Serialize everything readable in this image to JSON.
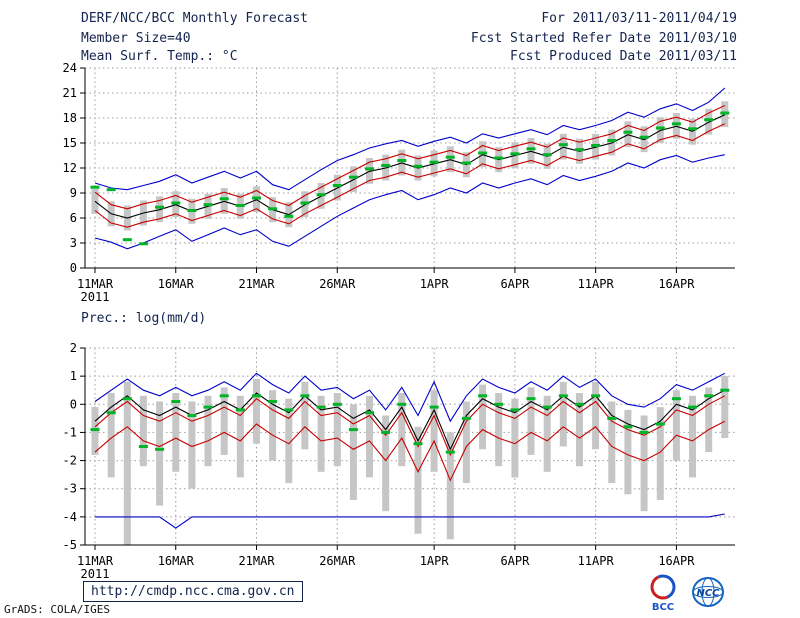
{
  "header": {
    "title": "DERF/NCC/BCC Monthly Forecast",
    "member_size": "Member Size=40",
    "for_range": "For 2011/03/11-2011/04/19",
    "refer_date": "Fcst Started Refer Date 2011/03/10",
    "produced_date": "Fcst Produced Date 2011/03/11"
  },
  "footer": {
    "url": "http://cmdp.ncc.cma.gov.cn",
    "grads_credit": "GrADS: COLA/IGES",
    "bcc_label": "BCC",
    "ncc_label": "NCC"
  },
  "colors": {
    "envelope": "#0000cc",
    "std_band": "#c80000",
    "ensemble_mean": "#000000",
    "observation": "#00b428",
    "spread_bar": "#c6c6c6"
  },
  "chart_data": [
    {
      "type": "line",
      "title": "Mean Surf. Temp.: °C",
      "ylabel": "",
      "ylim": [
        0,
        24
      ],
      "ytick_step": 3,
      "grid": true,
      "n_points": 40,
      "x_tick_labels": [
        "11MAR",
        "16MAR",
        "21MAR",
        "26MAR",
        "1APR",
        "6APR",
        "11APR",
        "16APR"
      ],
      "x_tick_days": [
        0,
        5,
        10,
        15,
        21,
        26,
        31,
        36
      ],
      "x_year": "2011",
      "series": [
        {
          "name": "max",
          "color": "#0000cc",
          "values": [
            10.2,
            9.6,
            9.4,
            9.9,
            10.4,
            11.2,
            10.2,
            10.9,
            11.6,
            10.8,
            11.6,
            10.0,
            9.4,
            10.6,
            11.8,
            12.9,
            13.6,
            14.4,
            14.9,
            15.3,
            14.6,
            15.2,
            15.7,
            15.0,
            16.1,
            15.6,
            16.1,
            16.6,
            16.0,
            17.1,
            16.6,
            17.1,
            17.7,
            18.7,
            18.1,
            19.1,
            19.7,
            18.9,
            19.9,
            21.6
          ]
        },
        {
          "name": "plus-std",
          "color": "#c80000",
          "values": [
            9.1,
            7.6,
            7.1,
            7.7,
            8.1,
            8.7,
            7.9,
            8.5,
            9.1,
            8.5,
            9.3,
            8.1,
            7.5,
            8.7,
            9.7,
            10.7,
            11.7,
            12.7,
            13.1,
            13.7,
            13.1,
            13.6,
            14.1,
            13.5,
            14.7,
            14.1,
            14.6,
            15.1,
            14.5,
            15.6,
            15.1,
            15.6,
            16.1,
            17.1,
            16.5,
            17.6,
            18.1,
            17.5,
            18.6,
            19.5
          ]
        },
        {
          "name": "mean",
          "color": "#000000",
          "values": [
            8.0,
            6.5,
            6.0,
            6.6,
            7.0,
            7.6,
            6.8,
            7.4,
            8.0,
            7.4,
            8.2,
            7.0,
            6.4,
            7.6,
            8.6,
            9.6,
            10.6,
            11.6,
            12.0,
            12.6,
            12.0,
            12.5,
            13.0,
            12.4,
            13.6,
            13.0,
            13.5,
            14.0,
            13.4,
            14.5,
            14.0,
            14.5,
            15.0,
            16.0,
            15.4,
            16.5,
            17.0,
            16.4,
            17.5,
            18.4
          ]
        },
        {
          "name": "minus-std",
          "color": "#c80000",
          "values": [
            6.9,
            5.4,
            4.9,
            5.5,
            5.9,
            6.5,
            5.7,
            6.3,
            6.9,
            6.3,
            7.1,
            5.9,
            5.3,
            6.5,
            7.5,
            8.5,
            9.5,
            10.5,
            10.9,
            11.5,
            10.9,
            11.4,
            11.9,
            11.3,
            12.5,
            11.9,
            12.4,
            12.9,
            12.3,
            13.4,
            12.9,
            13.4,
            13.9,
            14.9,
            14.3,
            15.4,
            15.9,
            15.3,
            16.4,
            17.3
          ]
        },
        {
          "name": "min",
          "color": "#0000cc",
          "values": [
            3.6,
            3.1,
            2.3,
            3.0,
            3.8,
            4.6,
            3.2,
            4.0,
            4.8,
            4.0,
            4.6,
            3.2,
            2.6,
            3.8,
            5.0,
            6.2,
            7.2,
            8.2,
            8.8,
            9.3,
            8.2,
            8.8,
            9.6,
            9.0,
            10.2,
            9.6,
            10.2,
            10.7,
            10.0,
            11.1,
            10.5,
            11.0,
            11.6,
            12.6,
            12.0,
            13.0,
            13.5,
            12.7,
            13.2,
            13.6
          ]
        }
      ],
      "ensemble_bars": {
        "color": "#c6c6c6",
        "high": [
          9.5,
          8.0,
          7.5,
          8.1,
          8.6,
          9.2,
          8.3,
          8.9,
          9.6,
          8.9,
          9.8,
          8.5,
          7.9,
          9.2,
          10.2,
          11.2,
          12.2,
          13.2,
          13.6,
          14.2,
          13.5,
          14.1,
          14.6,
          13.9,
          15.2,
          14.5,
          15.1,
          15.6,
          14.9,
          16.1,
          15.5,
          16.1,
          16.6,
          17.6,
          17.0,
          18.1,
          18.6,
          17.9,
          19.1,
          20.0
        ],
        "low": [
          6.5,
          5.0,
          4.5,
          5.1,
          5.5,
          6.1,
          5.3,
          5.9,
          6.5,
          5.9,
          6.7,
          5.5,
          4.9,
          6.1,
          7.1,
          8.1,
          9.1,
          10.1,
          10.5,
          11.1,
          10.5,
          11.0,
          11.5,
          10.9,
          12.1,
          11.5,
          12.0,
          12.5,
          11.9,
          13.0,
          12.5,
          13.0,
          13.5,
          14.5,
          13.9,
          15.0,
          15.5,
          14.8,
          16.0,
          16.9
        ]
      },
      "obs_marks": {
        "color": "#00b428",
        "values": [
          9.7,
          9.4,
          3.4,
          2.9,
          7.3,
          7.8,
          6.9,
          7.6,
          8.3,
          7.5,
          8.4,
          7.1,
          6.2,
          7.8,
          8.8,
          9.9,
          10.9,
          11.9,
          12.3,
          12.9,
          12.2,
          12.7,
          13.3,
          12.6,
          13.8,
          13.2,
          13.7,
          14.3,
          13.6,
          14.8,
          14.2,
          14.7,
          15.3,
          16.3,
          15.7,
          16.8,
          17.3,
          16.7,
          17.8,
          18.6
        ]
      }
    },
    {
      "type": "line",
      "title": "Prec.: log(mm/d)",
      "ylabel": "",
      "ylim": [
        -5,
        2
      ],
      "ytick_step": 1,
      "grid": true,
      "n_points": 40,
      "x_tick_labels": [
        "11MAR",
        "16MAR",
        "21MAR",
        "26MAR",
        "1APR",
        "6APR",
        "11APR",
        "16APR"
      ],
      "x_tick_days": [
        0,
        5,
        10,
        15,
        21,
        26,
        31,
        36
      ],
      "x_year": "2011",
      "series": [
        {
          "name": "max",
          "color": "#0000cc",
          "values": [
            0.1,
            0.5,
            0.9,
            0.5,
            0.3,
            0.6,
            0.3,
            0.5,
            0.8,
            0.5,
            1.1,
            0.7,
            0.4,
            1.0,
            0.5,
            0.6,
            0.2,
            0.5,
            -0.2,
            0.6,
            -0.4,
            0.8,
            -0.6,
            0.3,
            0.9,
            0.6,
            0.4,
            0.8,
            0.5,
            1.0,
            0.6,
            0.9,
            0.3,
            0.0,
            -0.1,
            0.2,
            0.7,
            0.5,
            0.8,
            1.1
          ]
        },
        {
          "name": "plus-std",
          "color": "#c80000",
          "values": [
            -0.8,
            -0.3,
            0.1,
            -0.4,
            -0.6,
            -0.3,
            -0.6,
            -0.4,
            -0.1,
            -0.4,
            0.2,
            -0.2,
            -0.5,
            0.1,
            -0.4,
            -0.3,
            -0.7,
            -0.4,
            -1.1,
            -0.3,
            -1.5,
            -0.4,
            -1.8,
            -0.6,
            0.0,
            -0.3,
            -0.5,
            -0.1,
            -0.4,
            0.1,
            -0.3,
            0.1,
            -0.6,
            -0.9,
            -1.1,
            -0.8,
            -0.2,
            -0.4,
            0.0,
            0.3
          ]
        },
        {
          "name": "mean",
          "color": "#000000",
          "values": [
            -0.6,
            -0.1,
            0.3,
            -0.2,
            -0.4,
            -0.1,
            -0.4,
            -0.2,
            0.1,
            -0.2,
            0.4,
            0.0,
            -0.3,
            0.3,
            -0.2,
            -0.1,
            -0.5,
            -0.2,
            -0.9,
            -0.1,
            -1.3,
            -0.2,
            -1.6,
            -0.4,
            0.2,
            -0.1,
            -0.3,
            0.1,
            -0.2,
            0.3,
            -0.1,
            0.3,
            -0.4,
            -0.7,
            -0.9,
            -0.6,
            0.0,
            -0.2,
            0.2,
            0.5
          ]
        },
        {
          "name": "minus-std",
          "color": "#c80000",
          "values": [
            -1.7,
            -1.2,
            -0.8,
            -1.3,
            -1.5,
            -1.2,
            -1.5,
            -1.3,
            -1.0,
            -1.3,
            -0.7,
            -1.1,
            -1.4,
            -0.8,
            -1.3,
            -1.2,
            -1.6,
            -1.3,
            -2.0,
            -1.2,
            -2.4,
            -1.3,
            -2.7,
            -1.5,
            -0.9,
            -1.2,
            -1.4,
            -1.0,
            -1.3,
            -0.8,
            -1.2,
            -0.8,
            -1.5,
            -1.8,
            -2.0,
            -1.7,
            -1.1,
            -1.3,
            -0.9,
            -0.6
          ]
        },
        {
          "name": "min",
          "color": "#0000cc",
          "values": [
            -4.0,
            -4.0,
            -4.0,
            -4.0,
            -4.0,
            -4.4,
            -4.0,
            -4.0,
            -4.0,
            -4.0,
            -4.0,
            -4.0,
            -4.0,
            -4.0,
            -4.0,
            -4.0,
            -4.0,
            -4.0,
            -4.0,
            -4.0,
            -4.0,
            -4.0,
            -4.0,
            -4.0,
            -4.0,
            -4.0,
            -4.0,
            -4.0,
            -4.0,
            -4.0,
            -4.0,
            -4.0,
            -4.0,
            -4.0,
            -4.0,
            -4.0,
            -4.0,
            -4.0,
            -4.0,
            -3.9
          ]
        }
      ],
      "ensemble_bars": {
        "color": "#c6c6c6",
        "high": [
          -0.1,
          0.4,
          0.8,
          0.3,
          0.1,
          0.4,
          0.1,
          0.3,
          0.6,
          0.3,
          0.9,
          0.5,
          0.2,
          0.8,
          0.3,
          0.4,
          0.0,
          0.3,
          -0.4,
          0.4,
          -0.8,
          0.5,
          -1.0,
          0.1,
          0.7,
          0.4,
          0.2,
          0.6,
          0.3,
          0.8,
          0.4,
          0.8,
          0.1,
          -0.2,
          -0.4,
          -0.1,
          0.5,
          0.3,
          0.6,
          1.0
        ],
        "low": [
          -1.8,
          -2.6,
          -5.0,
          -2.2,
          -3.6,
          -2.4,
          -3.0,
          -2.2,
          -1.8,
          -2.6,
          -1.4,
          -2.0,
          -2.8,
          -1.6,
          -2.4,
          -2.2,
          -3.4,
          -2.6,
          -3.8,
          -2.2,
          -4.6,
          -2.4,
          -4.8,
          -2.8,
          -1.6,
          -2.2,
          -2.6,
          -1.8,
          -2.4,
          -1.5,
          -2.2,
          -1.6,
          -2.8,
          -3.2,
          -3.8,
          -3.4,
          -2.0,
          -2.6,
          -1.7,
          -1.2
        ]
      },
      "obs_marks": {
        "color": "#00b428",
        "values": [
          -0.9,
          -0.3,
          0.2,
          -1.5,
          -1.6,
          0.1,
          -0.4,
          -0.1,
          0.3,
          -0.2,
          0.3,
          0.1,
          -0.2,
          0.3,
          -0.1,
          0.0,
          -0.9,
          -0.3,
          -1.0,
          0.0,
          -1.4,
          -0.1,
          -1.7,
          -0.5,
          0.3,
          0.0,
          -0.2,
          0.2,
          -0.1,
          0.3,
          0.0,
          0.3,
          -0.5,
          -0.8,
          -1.0,
          -0.7,
          0.2,
          -0.1,
          0.3,
          0.5
        ]
      }
    }
  ]
}
